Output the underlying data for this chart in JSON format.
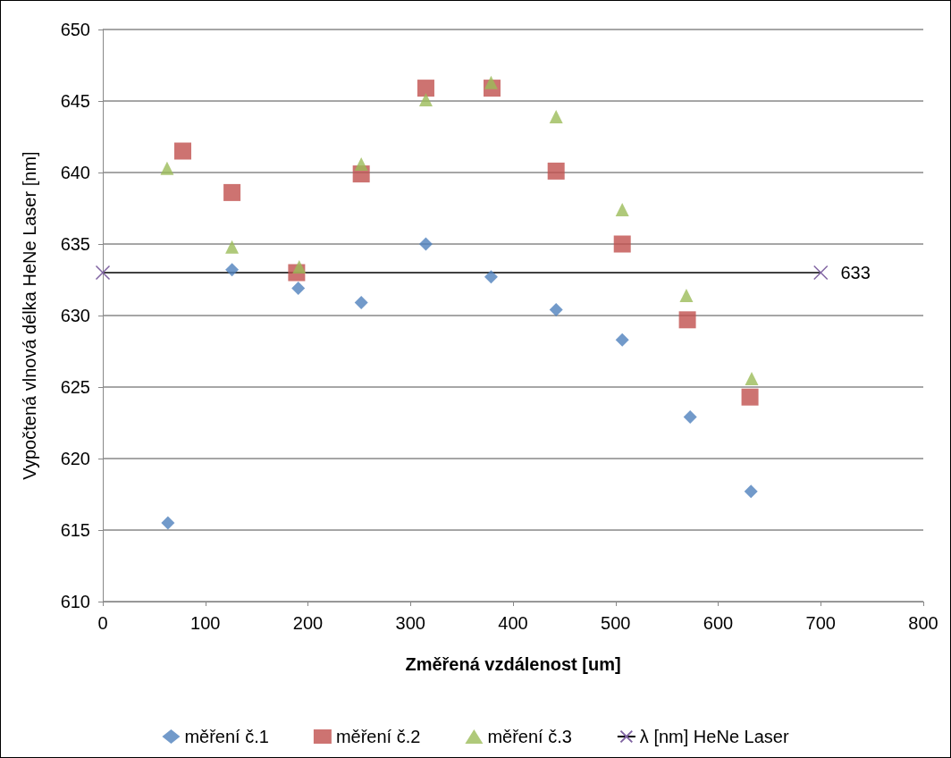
{
  "chart_data": {
    "type": "scatter",
    "xlabel": "Změřená vzdálenost [um]",
    "ylabel": "Vypočtená vlnová délka HeNe Laser [nm]",
    "xlim": [
      0,
      800
    ],
    "xticks": [
      0,
      100,
      200,
      300,
      400,
      500,
      600,
      700,
      800
    ],
    "ylim": [
      610,
      650
    ],
    "yticks": [
      610,
      615,
      620,
      625,
      630,
      635,
      640,
      645,
      650
    ],
    "grid": "y",
    "legend": "bottom",
    "series": [
      {
        "name": "měření č.1",
        "color": "#4f81bd",
        "marker": "diamond",
        "x": [
          63.5,
          126,
          190.6,
          252,
          315,
          378.6,
          442,
          506.5,
          572.7,
          632
        ],
        "values": [
          615.5,
          633.2,
          631.9,
          630.9,
          635.0,
          632.7,
          630.4,
          628.3,
          622.9,
          617.7
        ]
      },
      {
        "name": "měření č.2",
        "color": "#c0504d",
        "marker": "square",
        "x": [
          78,
          126,
          189,
          252,
          315,
          379.5,
          442,
          506.5,
          570,
          631
        ],
        "values": [
          641.5,
          638.6,
          633.0,
          639.9,
          645.9,
          645.9,
          640.1,
          635.0,
          629.7,
          624.3
        ]
      },
      {
        "name": "měření č.3",
        "color": "#9bbb59",
        "marker": "triangle",
        "x": [
          62.7,
          126,
          191.5,
          252,
          315,
          378.6,
          442,
          506.5,
          569,
          632.7
        ],
        "values": [
          640.3,
          634.8,
          633.4,
          640.6,
          645.1,
          646.3,
          643.9,
          637.4,
          631.4,
          625.6
        ]
      },
      {
        "name": "λ [nm] HeNe Laser",
        "type": "line",
        "color": "#8064a2",
        "marker": "cross",
        "x": [
          0,
          700
        ],
        "values": [
          633,
          633
        ],
        "value_labels": [
          null,
          "633"
        ]
      }
    ]
  }
}
